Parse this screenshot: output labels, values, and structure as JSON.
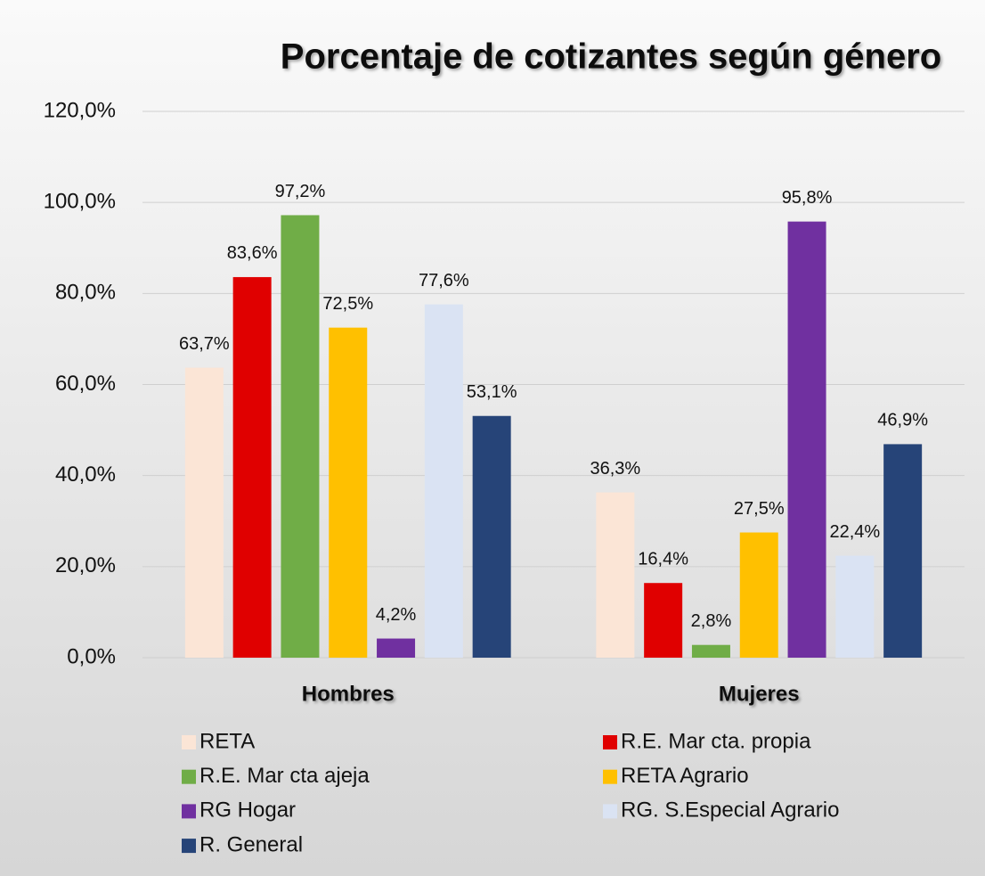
{
  "chart_data": {
    "type": "bar",
    "title": "Porcentaje de cotizantes según género",
    "categories": [
      "Hombres",
      "Mujeres"
    ],
    "series": [
      {
        "name": "RETA",
        "color": "#fbe5d6",
        "values": [
          63.7,
          36.3
        ],
        "value_labels": [
          "63,7%",
          "36,3%"
        ]
      },
      {
        "name": "R.E. Mar cta. propia",
        "color": "#e00000",
        "values": [
          83.6,
          16.4
        ],
        "value_labels": [
          "83,6%",
          "16,4%"
        ]
      },
      {
        "name": "R.E. Mar cta ajeja",
        "color": "#70ad47",
        "values": [
          97.2,
          2.8
        ],
        "value_labels": [
          "97,2%",
          "2,8%"
        ]
      },
      {
        "name": "RETA Agrario",
        "color": "#ffc000",
        "values": [
          72.5,
          27.5
        ],
        "value_labels": [
          "72,5%",
          "27,5%"
        ]
      },
      {
        "name": "RG Hogar",
        "color": "#7030a0",
        "values": [
          4.2,
          95.8
        ],
        "value_labels": [
          "4,2%",
          "95,8%"
        ]
      },
      {
        "name": "RG. S.Especial Agrario",
        "color": "#dae3f3",
        "values": [
          77.6,
          22.4
        ],
        "value_labels": [
          "77,6%",
          "22,4%"
        ]
      },
      {
        "name": "R. General",
        "color": "#264478",
        "values": [
          53.1,
          46.9
        ],
        "value_labels": [
          "53,1%",
          "46,9%"
        ]
      }
    ],
    "ylim": [
      0,
      120
    ],
    "yticks": [
      {
        "value": 0,
        "label": "0,0%"
      },
      {
        "value": 20,
        "label": "20,0%"
      },
      {
        "value": 40,
        "label": "40,0%"
      },
      {
        "value": 60,
        "label": "60,0%"
      },
      {
        "value": 80,
        "label": "80,0%"
      },
      {
        "value": 100,
        "label": "100,0%"
      },
      {
        "value": 120,
        "label": "120,0%"
      }
    ],
    "grid": true
  }
}
